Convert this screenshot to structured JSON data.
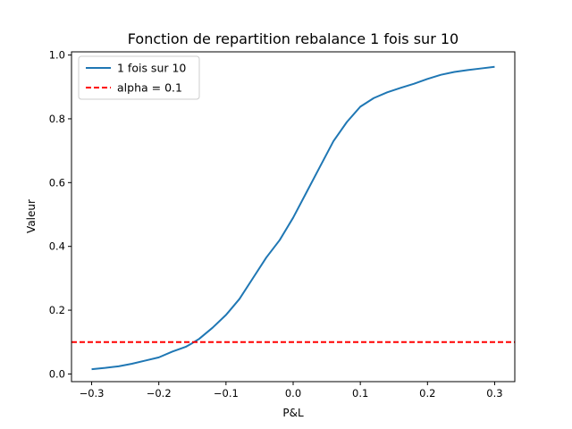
{
  "chart_data": {
    "type": "line",
    "title": "Fonction de repartition rebalance 1 fois sur 10",
    "xlabel": "P&L",
    "ylabel": "Valeur",
    "xlim": [
      -0.33,
      0.33
    ],
    "ylim": [
      -0.024,
      1.01
    ],
    "xticks": [
      -0.3,
      -0.2,
      -0.1,
      0.0,
      0.1,
      0.2,
      0.3
    ],
    "xtick_labels": [
      "−0.3",
      "−0.2",
      "−0.1",
      "0.0",
      "0.1",
      "0.2",
      "0.3"
    ],
    "yticks": [
      0.0,
      0.2,
      0.4,
      0.6,
      0.8,
      1.0
    ],
    "ytick_labels": [
      "0.0",
      "0.2",
      "0.4",
      "0.6",
      "0.8",
      "1.0"
    ],
    "grid": false,
    "legend_position": "top-left",
    "series": [
      {
        "name": "1 fois sur 10",
        "color": "#1f77b4",
        "style": "solid",
        "x": [
          -0.3,
          -0.28,
          -0.26,
          -0.24,
          -0.22,
          -0.2,
          -0.18,
          -0.16,
          -0.15,
          -0.14,
          -0.12,
          -0.1,
          -0.08,
          -0.06,
          -0.04,
          -0.02,
          0.0,
          0.02,
          0.04,
          0.06,
          0.08,
          0.1,
          0.12,
          0.14,
          0.16,
          0.18,
          0.2,
          0.22,
          0.24,
          0.26,
          0.28,
          0.3
        ],
        "y": [
          0.015,
          0.019,
          0.024,
          0.032,
          0.042,
          0.052,
          0.07,
          0.085,
          0.097,
          0.11,
          0.145,
          0.185,
          0.235,
          0.3,
          0.365,
          0.42,
          0.49,
          0.57,
          0.65,
          0.73,
          0.79,
          0.838,
          0.865,
          0.883,
          0.897,
          0.91,
          0.925,
          0.938,
          0.947,
          0.953,
          0.958,
          0.963
        ]
      },
      {
        "name": "alpha = 0.1",
        "color": "#ff0000",
        "style": "dashed",
        "x": [
          -0.33,
          0.33
        ],
        "y": [
          0.1,
          0.1
        ]
      }
    ]
  }
}
